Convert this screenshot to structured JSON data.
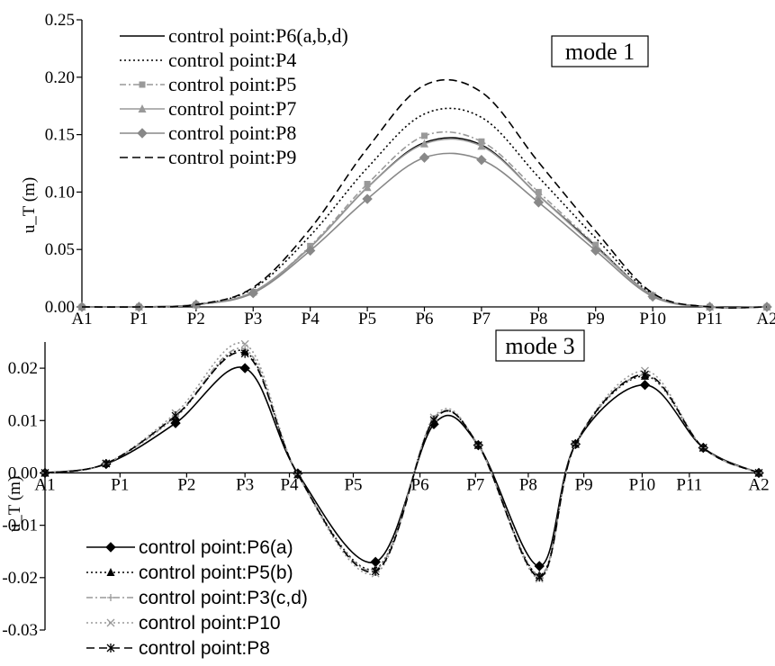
{
  "chart_data": [
    {
      "type": "line",
      "mode_label": "mode 1",
      "ylabel": "u_T (m)",
      "ylim": [
        0,
        0.25
      ],
      "yticks": [
        "0.00",
        "0.05",
        "0.10",
        "0.15",
        "0.20",
        "0.25"
      ],
      "xlabels": [
        "A1",
        "P1",
        "P2",
        "P3",
        "P4",
        "P5",
        "P6",
        "P7",
        "P8",
        "P9",
        "P10",
        "P11",
        "A2"
      ],
      "x": [
        0,
        1,
        2,
        3,
        4,
        5,
        6,
        7,
        8,
        9,
        10,
        11,
        12
      ],
      "legend_position": "top-left",
      "series": [
        {
          "name": "control point:P6(a,b,d)",
          "color": "#000000",
          "dash": "",
          "marker": "none",
          "values": [
            0,
            0,
            0.002,
            0.013,
            0.052,
            0.104,
            0.143,
            0.141,
            0.097,
            0.053,
            0.01,
            0,
            0
          ]
        },
        {
          "name": "control point:P4",
          "color": "#000000",
          "dash": "2,3",
          "marker": "none",
          "values": [
            0,
            0,
            0.002,
            0.016,
            0.062,
            0.121,
            0.168,
            0.165,
            0.113,
            0.06,
            0.011,
            0,
            0
          ]
        },
        {
          "name": "control point:P5",
          "color": "#999999",
          "dash": "7,3,2,3",
          "marker": "square",
          "values": [
            0,
            0,
            0.002,
            0.013,
            0.053,
            0.107,
            0.149,
            0.144,
            0.1,
            0.054,
            0.01,
            0,
            0
          ]
        },
        {
          "name": "control point:P7",
          "color": "#999999",
          "dash": "",
          "marker": "triangle",
          "values": [
            0,
            0,
            0.002,
            0.013,
            0.052,
            0.104,
            0.142,
            0.14,
            0.097,
            0.052,
            0.01,
            0,
            0
          ]
        },
        {
          "name": "control point:P8",
          "color": "#888888",
          "dash": "",
          "marker": "diamond",
          "values": [
            0,
            0,
            0.002,
            0.012,
            0.049,
            0.094,
            0.13,
            0.128,
            0.091,
            0.049,
            0.009,
            0,
            0
          ]
        },
        {
          "name": "control point:P9",
          "color": "#000000",
          "dash": "9,5",
          "marker": "none",
          "values": [
            0,
            0,
            0.002,
            0.017,
            0.068,
            0.138,
            0.193,
            0.187,
            0.126,
            0.066,
            0.012,
            0,
            0
          ]
        }
      ]
    },
    {
      "type": "line",
      "mode_label": "mode 3",
      "ylabel": "u_T (m)",
      "ylim": [
        -0.03,
        0.025
      ],
      "yticks": [
        "-0.03",
        "-0.02",
        "-0.01",
        "0.00",
        "0.01",
        "0.02"
      ],
      "xlabels": [
        "A1",
        "P1",
        "P2",
        "P3",
        "P4",
        "P5",
        "P6",
        "P7",
        "P8",
        "P9",
        "P10",
        "P11",
        "A2"
      ],
      "xlabel_pos": [
        0,
        1.35,
        2.55,
        3.6,
        4.4,
        5.55,
        6.75,
        7.75,
        8.7,
        9.7,
        10.75,
        11.6,
        12.85
      ],
      "legend_position": "bottom-left",
      "series": [
        {
          "name": "control point:P6(a)",
          "color": "#000000",
          "dash": "",
          "marker": "diamond",
          "x": [
            0,
            1.1,
            2.35,
            3.6,
            4.55,
            5.95,
            7.0,
            7.8,
            8.9,
            9.55,
            10.8,
            11.85,
            12.85
          ],
          "values": [
            0,
            0.0017,
            0.0095,
            0.02,
            -0.0001,
            -0.017,
            0.0093,
            0.0053,
            -0.0178,
            0.0055,
            0.0168,
            0.0048,
            0
          ]
        },
        {
          "name": "control point:P5(b)",
          "color": "#000000",
          "dash": "2,3",
          "marker": "triangle",
          "x": [
            0,
            1.1,
            2.35,
            3.6,
            4.55,
            5.95,
            7.0,
            7.8,
            8.9,
            9.55,
            10.8,
            11.85,
            12.85
          ],
          "values": [
            0,
            0.0018,
            0.0107,
            0.0232,
            -0.0003,
            -0.0183,
            0.0102,
            0.0053,
            -0.0195,
            0.0055,
            0.0185,
            0.0048,
            0
          ]
        },
        {
          "name": "control point:P3(c,d)",
          "color": "#999999",
          "dash": "7,3,2,3",
          "marker": "plus",
          "x": [
            0,
            1.1,
            2.35,
            3.6,
            4.55,
            5.95,
            7.0,
            7.8,
            8.9,
            9.55,
            10.8,
            11.85,
            12.85
          ],
          "values": [
            0,
            0.0018,
            0.0108,
            0.0236,
            -0.0003,
            -0.0185,
            0.0103,
            0.0053,
            -0.0196,
            0.0055,
            0.0187,
            0.0048,
            0
          ]
        },
        {
          "name": "control point:P10",
          "color": "#999999",
          "dash": "2,3",
          "marker": "x",
          "x": [
            0,
            1.1,
            2.35,
            3.6,
            4.55,
            5.95,
            7.0,
            7.8,
            8.9,
            9.55,
            10.8,
            11.85,
            12.85
          ],
          "values": [
            0,
            0.0018,
            0.0114,
            0.0246,
            -0.0003,
            -0.0192,
            0.0106,
            0.0053,
            -0.0202,
            0.0055,
            0.0195,
            0.0048,
            0
          ]
        },
        {
          "name": "control point:P8",
          "color": "#000000",
          "dash": "9,5",
          "marker": "asterisk",
          "x": [
            0,
            1.1,
            2.35,
            3.6,
            4.55,
            5.95,
            7.0,
            7.8,
            8.9,
            9.55,
            10.8,
            11.85,
            12.85
          ],
          "values": [
            0,
            0.0018,
            0.0109,
            0.0228,
            -0.0003,
            -0.0188,
            0.0101,
            0.0053,
            -0.0199,
            0.0055,
            0.0188,
            0.0048,
            0
          ]
        }
      ]
    }
  ]
}
